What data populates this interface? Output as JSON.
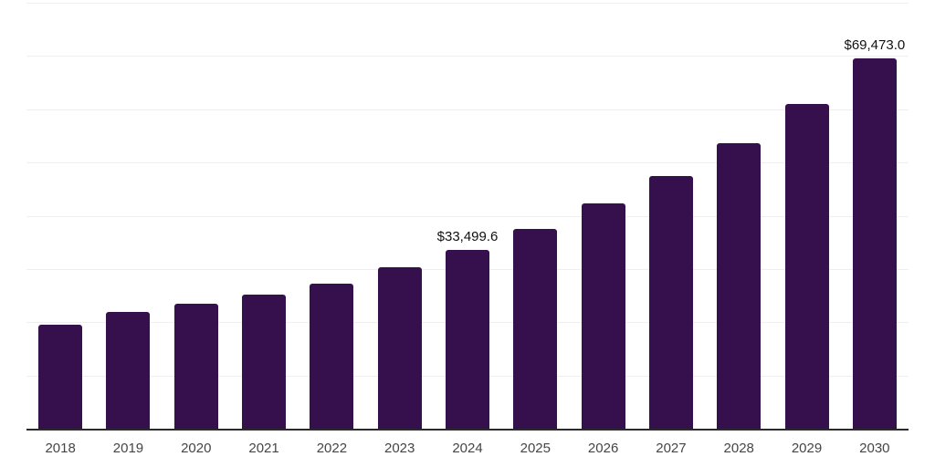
{
  "chart_data": {
    "type": "bar",
    "title": "",
    "xlabel": "",
    "ylabel": "",
    "categories": [
      "2018",
      "2019",
      "2020",
      "2021",
      "2022",
      "2023",
      "2024",
      "2025",
      "2026",
      "2027",
      "2028",
      "2029",
      "2030"
    ],
    "values": [
      19500,
      21900,
      23500,
      25200,
      27200,
      30300,
      33499.6,
      37500,
      42300,
      47400,
      53600,
      61000,
      69473.0
    ],
    "data_labels": [
      null,
      null,
      null,
      null,
      null,
      null,
      "$33,499.6",
      null,
      null,
      null,
      null,
      null,
      "$69,473.0"
    ],
    "ylim": [
      0,
      80000
    ],
    "gridline_step": 10000,
    "grid": "horizontal-only",
    "legend": "none",
    "y_tick_labels_visible": false
  },
  "colors": {
    "bar": "#36104D",
    "axis_line": "#2b2b2b",
    "gridline": "#efefef",
    "x_label_text": "#454545",
    "data_label_text": "#111111",
    "background": "#ffffff"
  }
}
